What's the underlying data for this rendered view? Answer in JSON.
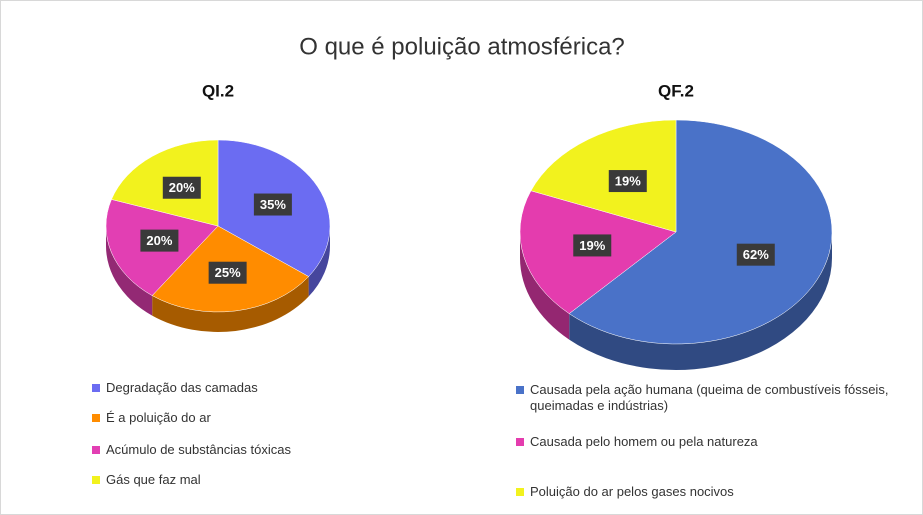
{
  "title": "O que é poluição atmosférica?",
  "chart_data": [
    {
      "type": "pie",
      "title": "QI.2",
      "categories": [
        "Degradação das camadas",
        "É a poluição do ar",
        "Acúmulo de substâncias tóxicas",
        "Gás que faz mal"
      ],
      "values": [
        35,
        25,
        20,
        20
      ],
      "value_labels": [
        "35%",
        "25%",
        "20%",
        "20%"
      ],
      "colors": [
        "#6b6cf2",
        "#ff8c00",
        "#e23fb3",
        "#f2f21e"
      ]
    },
    {
      "type": "pie",
      "title": "QF.2",
      "categories": [
        "Causada pela ação humana (queima de combustíveis fósseis, queimadas e indústrias)",
        "Causada pelo homem ou pela natureza",
        "Poluição do ar pelos gases nocivos"
      ],
      "values": [
        62,
        19,
        19
      ],
      "value_labels": [
        "62%",
        "19%",
        "19%"
      ],
      "colors": [
        "#4a72c8",
        "#e43cae",
        "#f2f21e"
      ]
    }
  ]
}
